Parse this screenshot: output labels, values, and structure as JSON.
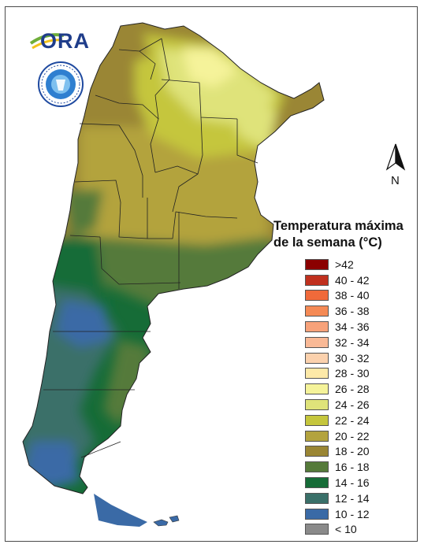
{
  "branding": {
    "ora_logo_text": "ORA",
    "seal_icon": "smn-argentina-seal-icon"
  },
  "compass": {
    "label": "N",
    "icon": "north-arrow-icon"
  },
  "legend": {
    "title": "Temperatura máxima\nde la semana (°C)",
    "classes": [
      {
        "label": ">42",
        "color": "#8b0000"
      },
      {
        "label": "40 - 42",
        "color": "#c0301e"
      },
      {
        "label": "38 - 40",
        "color": "#f06a3a"
      },
      {
        "label": "36 - 38",
        "color": "#f58a55"
      },
      {
        "label": "34 - 36",
        "color": "#f7a27a"
      },
      {
        "label": "32 - 34",
        "color": "#f9b996"
      },
      {
        "label": "30 - 32",
        "color": "#fbd1ad"
      },
      {
        "label": "28 - 30",
        "color": "#fde9a8"
      },
      {
        "label": "26 - 28",
        "color": "#f5f39a"
      },
      {
        "label": "24 - 26",
        "color": "#dfe37a"
      },
      {
        "label": "22 - 24",
        "color": "#c5c63c"
      },
      {
        "label": "20 - 22",
        "color": "#b3a33e"
      },
      {
        "label": "18 - 20",
        "color": "#9a8634"
      },
      {
        "label": "16 - 18",
        "color": "#557a3a"
      },
      {
        "label": "14 - 16",
        "color": "#166c37"
      },
      {
        "label": "12 - 14",
        "color": "#3a7069"
      },
      {
        "label": "10 - 12",
        "color": "#3a6aa6"
      },
      {
        "label": "< 10",
        "color": "#8a8a8a"
      }
    ]
  }
}
